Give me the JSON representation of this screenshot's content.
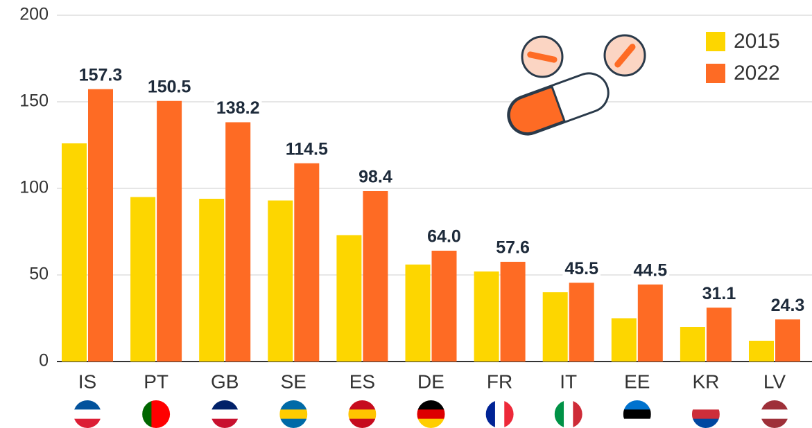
{
  "chart_data": {
    "type": "bar",
    "categories": [
      "IS",
      "PT",
      "GB",
      "SE",
      "ES",
      "DE",
      "FR",
      "IT",
      "EE",
      "KR",
      "LV"
    ],
    "series": [
      {
        "name": "2015",
        "color": "#fdd600",
        "values": [
          126,
          95,
          94,
          93,
          73,
          56,
          52,
          40,
          25,
          20,
          12
        ]
      },
      {
        "name": "2022",
        "color": "#fe6b24",
        "values": [
          157.3,
          150.5,
          138.2,
          114.5,
          98.4,
          64.0,
          57.6,
          45.5,
          44.5,
          31.1,
          24.3
        ],
        "value_labels": [
          "157.3",
          "150.5",
          "138.2",
          "114.5",
          "98.4",
          "64.0",
          "57.6",
          "45.5",
          "44.5",
          "31.1",
          "24.3"
        ]
      }
    ],
    "ylim": [
      0,
      200
    ],
    "yticks": [
      0,
      50,
      100,
      150,
      200
    ],
    "grid": true,
    "legend": "top-right"
  }
}
